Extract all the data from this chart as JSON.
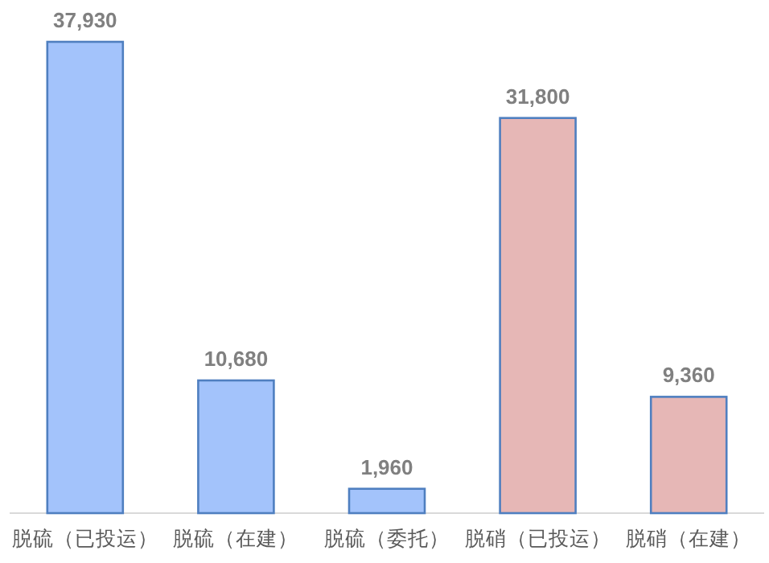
{
  "chart_data": {
    "type": "bar",
    "categories": [
      "脱硫（已投运）",
      "脱硫（在建）",
      "脱硫（委托）",
      "脱硝（已投运）",
      "脱硝（在建）"
    ],
    "values": [
      37930,
      10680,
      1960,
      31800,
      9360
    ],
    "colors": [
      "#a3c3fb",
      "#a3c3fb",
      "#a3c3fb",
      "#e6b7b6",
      "#e6b7b6"
    ],
    "value_labels": [
      "37,930",
      "10,680",
      "1,960",
      "31,800",
      "9,360"
    ]
  }
}
